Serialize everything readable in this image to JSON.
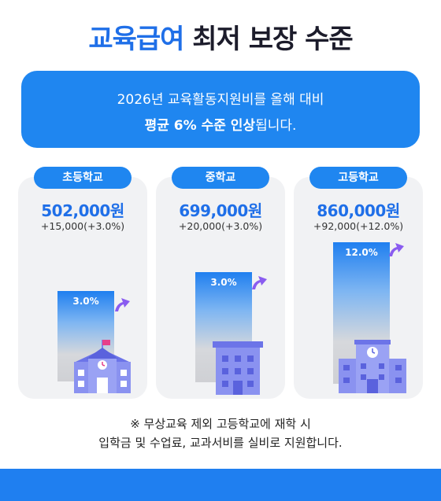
{
  "title": {
    "highlight": "교육급여",
    "rest": "최저 보장 수준"
  },
  "banner": {
    "line1": "2026년 교육활동지원비를 올해 대비",
    "line2_bold": "평균 6% 수준 인상",
    "line2_rest": "됩니다."
  },
  "schools": [
    {
      "label": "초등학교",
      "amount": "502,000원",
      "change": "+15,000(+3.0%)",
      "bar_pct": "3.0%",
      "icon": "elementary-school-icon"
    },
    {
      "label": "중학교",
      "amount": "699,000원",
      "change": "+20,000(+3.0%)",
      "bar_pct": "3.0%",
      "icon": "middle-school-icon"
    },
    {
      "label": "고등학교",
      "amount": "860,000원",
      "change": "+92,000(+12.0%)",
      "bar_pct": "12.0%",
      "icon": "high-school-icon"
    }
  ],
  "note": {
    "line1": "※ 무상교육 제외 고등학교에 재학 시",
    "line2": "입학금 및 수업료, 교과서비를 실비로 지원합니다."
  },
  "colors": {
    "primary": "#1f86f0",
    "title_blue": "#1f6fe8",
    "arrow": "#8a5cf0",
    "building": "#7b83ee"
  }
}
